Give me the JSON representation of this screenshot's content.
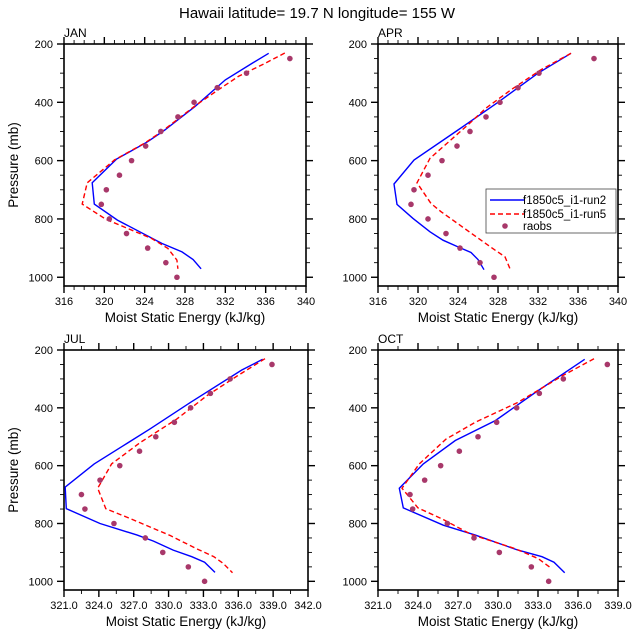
{
  "chart_data": {
    "type": "line",
    "title": "Hawaii  latitude= 19.7 N longitude= 155 W",
    "xlabel": "Moist Static Energy (kJ/kg)",
    "ylabel": "Pressure (mb)",
    "legend": {
      "placement": "APR panel, lower-right",
      "entries": [
        "f1850c5_i1-run2",
        "f1850c5_i1-run5",
        "raobs"
      ]
    },
    "colors": {
      "run2": "#0000ff",
      "run5": "#ff0000",
      "raobs": "#a8386a"
    },
    "panels": [
      {
        "name": "JAN",
        "xlim": [
          316,
          340
        ],
        "xticks": [
          "316",
          "320",
          "324",
          "328",
          "332",
          "336",
          "340"
        ],
        "xtick_values": [
          316,
          320,
          324,
          328,
          332,
          336,
          340
        ],
        "xminor": 1,
        "ylim": [
          200,
          1030
        ],
        "yticks": [
          "200",
          "400",
          "600",
          "800",
          "1000"
        ],
        "ytick_values": [
          200,
          400,
          600,
          800,
          1000
        ],
        "run2": [
          [
            336.3,
            232
          ],
          [
            334.7,
            265
          ],
          [
            332,
            323
          ],
          [
            329,
            414
          ],
          [
            326,
            495
          ],
          [
            324.3,
            535
          ],
          [
            321.2,
            595
          ],
          [
            318.8,
            676
          ],
          [
            319,
            749
          ],
          [
            321.3,
            804
          ],
          [
            325.7,
            884
          ],
          [
            327.7,
            913
          ],
          [
            328.8,
            939
          ],
          [
            329.6,
            971
          ]
        ],
        "run5": [
          [
            337.9,
            231
          ],
          [
            336,
            265
          ],
          [
            333.3,
            311
          ],
          [
            331.3,
            357
          ],
          [
            329,
            412
          ],
          [
            325.7,
            500
          ],
          [
            324,
            540
          ],
          [
            321,
            598
          ],
          [
            318.3,
            676
          ],
          [
            317.8,
            749
          ],
          [
            320.2,
            802
          ],
          [
            324.7,
            867
          ],
          [
            326.3,
            901
          ],
          [
            327.2,
            941
          ],
          [
            327.3,
            971
          ]
        ],
        "raobs": [
          [
            338.4,
            250
          ],
          [
            334.1,
            300
          ],
          [
            331.2,
            350
          ],
          [
            328.9,
            400
          ],
          [
            327.3,
            450
          ],
          [
            325.6,
            500
          ],
          [
            324.1,
            550
          ],
          [
            322.7,
            600
          ],
          [
            321.5,
            650
          ],
          [
            320.2,
            700
          ],
          [
            319.7,
            750
          ],
          [
            320.5,
            800
          ],
          [
            322.2,
            850
          ],
          [
            324.3,
            900
          ],
          [
            326.1,
            950
          ],
          [
            327.2,
            1000
          ]
        ]
      },
      {
        "name": "APR",
        "xlim": [
          316,
          340
        ],
        "xticks": [
          "316",
          "320",
          "324",
          "328",
          "332",
          "336",
          "340"
        ],
        "xtick_values": [
          316,
          320,
          324,
          328,
          332,
          336,
          340
        ],
        "xminor": 1,
        "ylim": [
          200,
          1030
        ],
        "yticks": [
          "200",
          "400",
          "600",
          "800",
          "1000"
        ],
        "ytick_values": [
          200,
          400,
          600,
          800,
          1000
        ],
        "run2": [
          [
            335.3,
            232
          ],
          [
            332,
            300
          ],
          [
            328,
            400
          ],
          [
            324,
            495
          ],
          [
            319.6,
            598
          ],
          [
            317.6,
            680
          ],
          [
            317.9,
            750
          ],
          [
            319.5,
            798
          ],
          [
            321.2,
            844
          ],
          [
            322.5,
            873
          ],
          [
            324,
            896
          ],
          [
            325.3,
            915
          ],
          [
            326,
            939
          ],
          [
            326.6,
            974
          ]
        ],
        "run5": [
          [
            335.3,
            232
          ],
          [
            332.3,
            288
          ],
          [
            329.3,
            357
          ],
          [
            326.8,
            420
          ],
          [
            325,
            477
          ],
          [
            321.2,
            592
          ],
          [
            319.9,
            676
          ],
          [
            321.3,
            747
          ],
          [
            322.3,
            775
          ],
          [
            327.7,
            907
          ],
          [
            328.7,
            930
          ],
          [
            329.2,
            971
          ]
        ],
        "raobs": [
          [
            337.6,
            250
          ],
          [
            332.1,
            300
          ],
          [
            330,
            350
          ],
          [
            328.2,
            400
          ],
          [
            326.8,
            450
          ],
          [
            325.2,
            500
          ],
          [
            323.9,
            550
          ],
          [
            322.4,
            600
          ],
          [
            321,
            650
          ],
          [
            319.6,
            700
          ],
          [
            319.3,
            750
          ],
          [
            321,
            800
          ],
          [
            322.8,
            850
          ],
          [
            324.2,
            900
          ],
          [
            326.2,
            950
          ],
          [
            327.6,
            1000
          ]
        ]
      },
      {
        "name": "JUL",
        "xlim": [
          321,
          342
        ],
        "xticks": [
          "321.0",
          "324.0",
          "327.0",
          "330.0",
          "333.0",
          "336.0",
          "339.0",
          "342.0"
        ],
        "xtick_values": [
          321,
          324,
          327,
          330,
          333,
          336,
          339,
          342
        ],
        "xminor": 1.5,
        "ylim": [
          200,
          1030
        ],
        "yticks": [
          "200",
          "400",
          "600",
          "800",
          "1000"
        ],
        "ytick_values": [
          200,
          400,
          600,
          800,
          1000
        ],
        "run2": [
          [
            338.1,
            232
          ],
          [
            336.3,
            269
          ],
          [
            331.9,
            381
          ],
          [
            328.4,
            473
          ],
          [
            326.1,
            531
          ],
          [
            323.6,
            594
          ],
          [
            321.1,
            674
          ],
          [
            321.2,
            749
          ],
          [
            324.1,
            800
          ],
          [
            327.3,
            840
          ],
          [
            328.7,
            861
          ],
          [
            330.4,
            892
          ],
          [
            332,
            915
          ],
          [
            333.1,
            934
          ],
          [
            334,
            969
          ]
        ],
        "run5": [
          [
            338.3,
            230
          ],
          [
            335.9,
            290
          ],
          [
            333.3,
            358
          ],
          [
            330.7,
            439
          ],
          [
            327.6,
            519
          ],
          [
            325.1,
            594
          ],
          [
            323.9,
            678
          ],
          [
            324.6,
            749
          ],
          [
            326.4,
            778
          ],
          [
            330.1,
            841
          ],
          [
            332.4,
            887
          ],
          [
            333.9,
            915
          ],
          [
            334.7,
            938
          ],
          [
            335.5,
            970
          ]
        ],
        "raobs": [
          [
            338.9,
            250
          ],
          [
            335.3,
            300
          ],
          [
            333.6,
            350
          ],
          [
            331.9,
            400
          ],
          [
            330.5,
            450
          ],
          [
            328.9,
            500
          ],
          [
            327.5,
            550
          ],
          [
            325.8,
            600
          ],
          [
            324.1,
            650
          ],
          [
            322.5,
            700
          ],
          [
            322.8,
            750
          ],
          [
            325.3,
            800
          ],
          [
            328,
            850
          ],
          [
            329.5,
            900
          ],
          [
            331.7,
            950
          ],
          [
            333.1,
            1000
          ]
        ]
      },
      {
        "name": "OCT",
        "xlim": [
          321,
          339
        ],
        "xticks": [
          "321.0",
          "324.0",
          "327.0",
          "330.0",
          "333.0",
          "336.0",
          "339.0"
        ],
        "xtick_values": [
          321,
          324,
          327,
          330,
          333,
          336,
          339
        ],
        "xminor": 1.5,
        "ylim": [
          200,
          1030
        ],
        "yticks": [
          "200",
          "400",
          "600",
          "800",
          "1000"
        ],
        "ytick_values": [
          200,
          400,
          600,
          800,
          1000
        ],
        "run2": [
          [
            336.5,
            232
          ],
          [
            332.8,
            347
          ],
          [
            329.8,
            444
          ],
          [
            326.8,
            513
          ],
          [
            324.4,
            594
          ],
          [
            322.6,
            678
          ],
          [
            322.9,
            746
          ],
          [
            325.9,
            806
          ],
          [
            328.3,
            840
          ],
          [
            331.5,
            892
          ],
          [
            333.3,
            915
          ],
          [
            334.2,
            934
          ],
          [
            335,
            970
          ]
        ],
        "run5": [
          [
            337.2,
            230
          ],
          [
            334.8,
            290
          ],
          [
            331.5,
            381
          ],
          [
            328.3,
            450
          ],
          [
            326.1,
            508
          ],
          [
            324.1,
            594
          ],
          [
            322.8,
            678
          ],
          [
            324,
            746
          ],
          [
            325.8,
            784
          ],
          [
            328,
            838
          ],
          [
            331.3,
            887
          ],
          [
            333,
            921
          ],
          [
            334,
            955
          ]
        ],
        "raobs": [
          [
            338.2,
            250
          ],
          [
            334.9,
            300
          ],
          [
            333.1,
            350
          ],
          [
            331.4,
            400
          ],
          [
            329.9,
            450
          ],
          [
            328.5,
            500
          ],
          [
            327.1,
            550
          ],
          [
            325.7,
            600
          ],
          [
            324.5,
            650
          ],
          [
            323.4,
            700
          ],
          [
            323.6,
            750
          ],
          [
            326.2,
            800
          ],
          [
            328.2,
            850
          ],
          [
            330.1,
            900
          ],
          [
            332.5,
            950
          ],
          [
            333.8,
            1000
          ]
        ]
      }
    ]
  }
}
